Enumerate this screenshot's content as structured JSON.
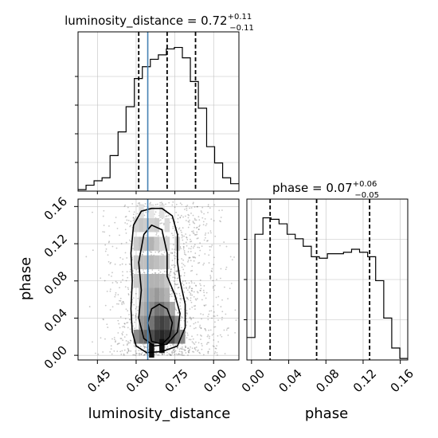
{
  "chart_data": {
    "type": "corner",
    "parameters": [
      "luminosity_distance",
      "phase"
    ],
    "truth": {
      "luminosity_distance": 0.645
    },
    "colors": {
      "truth": "#4682b4",
      "hist": "#000000",
      "grid": "#c0c0c0"
    },
    "panels": {
      "luminosity_distance_hist": {
        "title_name": "luminosity_distance",
        "title_value": "0.72",
        "title_plus": "+0.11",
        "title_minus": "−0.11",
        "xlim": [
          0.375,
          0.998
        ],
        "ylim": [
          0,
          1
        ],
        "quantiles": [
          0.61,
          0.72,
          0.83
        ],
        "bin_edges": [
          0.375,
          0.406,
          0.437,
          0.468,
          0.499,
          0.53,
          0.561,
          0.593,
          0.624,
          0.655,
          0.686,
          0.717,
          0.748,
          0.779,
          0.81,
          0.841,
          0.873,
          0.904,
          0.935,
          0.966,
          0.998
        ],
        "counts": [
          0.01,
          0.04,
          0.07,
          0.09,
          0.24,
          0.4,
          0.57,
          0.76,
          0.84,
          0.89,
          0.92,
          0.96,
          0.97,
          0.9,
          0.74,
          0.56,
          0.3,
          0.19,
          0.09,
          0.05
        ]
      },
      "phase_hist": {
        "title_name": "phase",
        "title_value": "0.07",
        "title_plus": "+0.06",
        "title_minus": "−0.05",
        "xlim": [
          -0.005,
          0.168
        ],
        "ylim": [
          0,
          1
        ],
        "quantiles": [
          0.02,
          0.07,
          0.127
        ],
        "bin_edges": [
          -0.005,
          0.0037,
          0.0123,
          0.021,
          0.0296,
          0.0383,
          0.047,
          0.0556,
          0.0643,
          0.0729,
          0.0816,
          0.0902,
          0.0989,
          0.1076,
          0.1162,
          0.1249,
          0.1335,
          0.1422,
          0.1508,
          0.1595,
          0.168
        ],
        "counts": [
          0.15,
          0.84,
          0.95,
          0.94,
          0.91,
          0.84,
          0.81,
          0.76,
          0.69,
          0.68,
          0.71,
          0.71,
          0.72,
          0.74,
          0.72,
          0.69,
          0.53,
          0.28,
          0.08,
          0.01
        ]
      },
      "joint": {
        "xlim": [
          0.375,
          0.998
        ],
        "ylim": [
          -0.005,
          0.168
        ],
        "density_cells": [
          [
            0.6,
            0.02,
            0.45
          ],
          [
            0.62,
            0.02,
            0.55
          ],
          [
            0.64,
            0.02,
            0.6
          ],
          [
            0.66,
            0.02,
            0.7
          ],
          [
            0.68,
            0.02,
            0.8
          ],
          [
            0.7,
            0.02,
            0.85
          ],
          [
            0.72,
            0.02,
            0.8
          ],
          [
            0.74,
            0.02,
            0.7
          ],
          [
            0.76,
            0.02,
            0.55
          ],
          [
            0.78,
            0.02,
            0.45
          ],
          [
            0.62,
            0.035,
            0.4
          ],
          [
            0.64,
            0.035,
            0.45
          ],
          [
            0.66,
            0.035,
            0.55
          ],
          [
            0.68,
            0.035,
            0.7
          ],
          [
            0.7,
            0.035,
            0.75
          ],
          [
            0.72,
            0.035,
            0.7
          ],
          [
            0.74,
            0.035,
            0.6
          ],
          [
            0.76,
            0.035,
            0.45
          ],
          [
            0.62,
            0.05,
            0.3
          ],
          [
            0.64,
            0.05,
            0.35
          ],
          [
            0.66,
            0.05,
            0.45
          ],
          [
            0.68,
            0.05,
            0.55
          ],
          [
            0.7,
            0.05,
            0.55
          ],
          [
            0.72,
            0.05,
            0.45
          ],
          [
            0.74,
            0.05,
            0.35
          ],
          [
            0.62,
            0.065,
            0.25
          ],
          [
            0.64,
            0.065,
            0.3
          ],
          [
            0.66,
            0.065,
            0.35
          ],
          [
            0.68,
            0.065,
            0.4
          ],
          [
            0.7,
            0.065,
            0.35
          ],
          [
            0.72,
            0.065,
            0.3
          ],
          [
            0.6,
            0.08,
            0.2
          ],
          [
            0.62,
            0.08,
            0.25
          ],
          [
            0.64,
            0.08,
            0.28
          ],
          [
            0.66,
            0.08,
            0.3
          ],
          [
            0.68,
            0.08,
            0.3
          ],
          [
            0.7,
            0.08,
            0.28
          ],
          [
            0.72,
            0.08,
            0.22
          ],
          [
            0.6,
            0.1,
            0.2
          ],
          [
            0.62,
            0.1,
            0.25
          ],
          [
            0.64,
            0.1,
            0.25
          ],
          [
            0.66,
            0.1,
            0.28
          ],
          [
            0.68,
            0.1,
            0.25
          ],
          [
            0.7,
            0.1,
            0.22
          ],
          [
            0.72,
            0.1,
            0.2
          ],
          [
            0.6,
            0.12,
            0.2
          ],
          [
            0.62,
            0.12,
            0.25
          ],
          [
            0.64,
            0.12,
            0.25
          ],
          [
            0.66,
            0.12,
            0.3
          ],
          [
            0.68,
            0.12,
            0.22
          ],
          [
            0.7,
            0.12,
            0.15
          ],
          [
            0.72,
            0.12,
            0.18
          ],
          [
            0.76,
            0.12,
            0.2
          ],
          [
            0.6,
            0.14,
            0.18
          ],
          [
            0.62,
            0.14,
            0.22
          ],
          [
            0.64,
            0.14,
            0.2
          ],
          [
            0.66,
            0.14,
            0.18
          ],
          [
            0.68,
            0.14,
            0.2
          ],
          [
            0.72,
            0.14,
            0.15
          ],
          [
            0.62,
            0.155,
            0.12
          ],
          [
            0.66,
            0.155,
            0.1
          ],
          [
            0.7,
            0.155,
            0.12
          ],
          [
            0.66,
            0.005,
            0.95
          ],
          [
            0.7,
            0.01,
            0.95
          ]
        ],
        "contours": [
          [
            [
              0.6,
              0.01
            ],
            [
              0.64,
              0.003
            ],
            [
              0.7,
              0.004
            ],
            [
              0.76,
              0.01
            ],
            [
              0.79,
              0.03
            ],
            [
              0.79,
              0.055
            ],
            [
              0.77,
              0.08
            ],
            [
              0.76,
              0.1
            ],
            [
              0.76,
              0.13
            ],
            [
              0.74,
              0.15
            ],
            [
              0.7,
              0.158
            ],
            [
              0.66,
              0.158
            ],
            [
              0.62,
              0.155
            ],
            [
              0.59,
              0.14
            ],
            [
              0.58,
              0.11
            ],
            [
              0.585,
              0.08
            ],
            [
              0.58,
              0.05
            ],
            [
              0.585,
              0.025
            ]
          ],
          [
            [
              0.63,
              0.018
            ],
            [
              0.67,
              0.01
            ],
            [
              0.72,
              0.012
            ],
            [
              0.76,
              0.025
            ],
            [
              0.77,
              0.045
            ],
            [
              0.75,
              0.065
            ],
            [
              0.72,
              0.085
            ],
            [
              0.72,
              0.11
            ],
            [
              0.7,
              0.135
            ],
            [
              0.66,
              0.14
            ],
            [
              0.63,
              0.13
            ],
            [
              0.61,
              0.1
            ],
            [
              0.62,
              0.07
            ],
            [
              0.61,
              0.04
            ]
          ],
          [
            [
              0.66,
              0.015
            ],
            [
              0.7,
              0.012
            ],
            [
              0.73,
              0.02
            ],
            [
              0.74,
              0.035
            ],
            [
              0.72,
              0.05
            ],
            [
              0.69,
              0.055
            ],
            [
              0.66,
              0.05
            ],
            [
              0.645,
              0.035
            ]
          ]
        ]
      }
    },
    "x_ticks_ld": [
      "0.45",
      "0.60",
      "0.75",
      "0.90"
    ],
    "x_tick_values_ld": [
      0.45,
      0.6,
      0.75,
      0.9
    ],
    "y_ticks_phase": [
      "0.00",
      "0.04",
      "0.08",
      "0.12",
      "0.16"
    ],
    "y_tick_values_phase": [
      0.0,
      0.04,
      0.08,
      0.12,
      0.16
    ],
    "x_ticks_phase": [
      "0.00",
      "0.04",
      "0.08",
      "0.12",
      "0.16"
    ],
    "x_tick_values_phase": [
      0.0,
      0.04,
      0.08,
      0.12,
      0.16
    ],
    "xlabel_ld": "luminosity_distance",
    "xlabel_phase": "phase",
    "ylabel_phase": "phase"
  }
}
